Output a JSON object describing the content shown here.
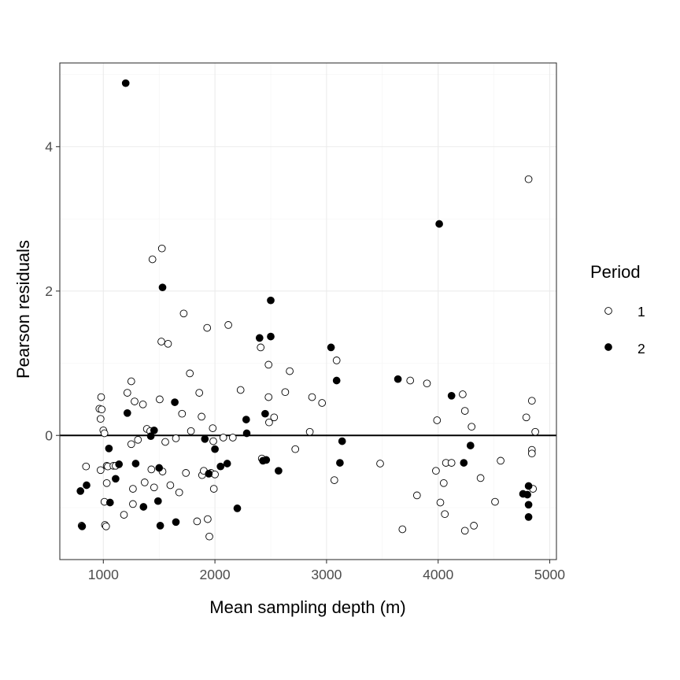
{
  "chart_data": {
    "type": "scatter",
    "xlabel": "Mean sampling depth (m)",
    "ylabel": "Pearson residuals",
    "xlim": [
      610,
      5060
    ],
    "ylim": [
      -1.72,
      5.16
    ],
    "x_ticks": [
      1000,
      2000,
      3000,
      4000,
      5000
    ],
    "x_tick_labels": [
      "1000",
      "2000",
      "3000",
      "4000",
      "5000"
    ],
    "y_ticks": [
      0,
      2,
      4
    ],
    "y_tick_labels": [
      "0",
      "2",
      "4"
    ],
    "x_minor": [
      1500,
      2500,
      3500,
      4500
    ],
    "y_minor": [
      -1,
      1,
      3,
      5
    ],
    "grid": true,
    "hline": 0,
    "legend": {
      "title": "Period",
      "position": "right",
      "entries": [
        {
          "label": "1",
          "style": "open"
        },
        {
          "label": "2",
          "style": "filled"
        }
      ]
    },
    "series": [
      {
        "name": "1",
        "style": "open",
        "points": [
          [
            805,
            -1.25
          ],
          [
            845,
            -0.43
          ],
          [
            965,
            0.37
          ],
          [
            980,
            0.53
          ],
          [
            975,
            0.23
          ],
          [
            985,
            0.36
          ],
          [
            975,
            -0.48
          ],
          [
            1000,
            0.07
          ],
          [
            1010,
            0.03
          ],
          [
            1010,
            -0.92
          ],
          [
            1015,
            -1.24
          ],
          [
            1025,
            -1.26
          ],
          [
            1030,
            -0.42
          ],
          [
            1030,
            -0.66
          ],
          [
            1040,
            -0.43
          ],
          [
            1090,
            -0.42
          ],
          [
            1110,
            -0.42
          ],
          [
            1185,
            -1.1
          ],
          [
            1215,
            0.59
          ],
          [
            1250,
            0.75
          ],
          [
            1250,
            -0.12
          ],
          [
            1265,
            -0.74
          ],
          [
            1265,
            -0.95
          ],
          [
            1280,
            0.47
          ],
          [
            1310,
            -0.06
          ],
          [
            1355,
            0.43
          ],
          [
            1370,
            -0.65
          ],
          [
            1390,
            0.09
          ],
          [
            1420,
            0.06
          ],
          [
            1430,
            -0.47
          ],
          [
            1440,
            2.44
          ],
          [
            1455,
            -0.72
          ],
          [
            1505,
            0.5
          ],
          [
            1520,
            1.3
          ],
          [
            1525,
            2.59
          ],
          [
            1530,
            -0.5
          ],
          [
            1555,
            -0.09
          ],
          [
            1580,
            1.27
          ],
          [
            1600,
            -0.69
          ],
          [
            1650,
            -0.04
          ],
          [
            1680,
            -0.79
          ],
          [
            1705,
            0.3
          ],
          [
            1720,
            1.69
          ],
          [
            1740,
            -0.52
          ],
          [
            1775,
            0.86
          ],
          [
            1785,
            0.06
          ],
          [
            1840,
            -1.19
          ],
          [
            1860,
            0.59
          ],
          [
            1880,
            0.26
          ],
          [
            1885,
            -0.55
          ],
          [
            1900,
            -0.49
          ],
          [
            1935,
            -1.16
          ],
          [
            1930,
            1.49
          ],
          [
            1950,
            -1.4
          ],
          [
            1965,
            -0.52
          ],
          [
            1980,
            0.1
          ],
          [
            1985,
            -0.08
          ],
          [
            1990,
            -0.74
          ],
          [
            2000,
            -0.54
          ],
          [
            2075,
            -0.03
          ],
          [
            2120,
            1.53
          ],
          [
            2160,
            -0.03
          ],
          [
            2230,
            0.63
          ],
          [
            2410,
            1.22
          ],
          [
            2420,
            -0.32
          ],
          [
            2480,
            0.98
          ],
          [
            2480,
            0.53
          ],
          [
            2485,
            0.18
          ],
          [
            2530,
            0.25
          ],
          [
            2630,
            0.6
          ],
          [
            2670,
            0.89
          ],
          [
            2720,
            -0.19
          ],
          [
            2850,
            0.05
          ],
          [
            2870,
            0.53
          ],
          [
            2960,
            0.45
          ],
          [
            3070,
            -0.62
          ],
          [
            3090,
            1.04
          ],
          [
            3480,
            -0.39
          ],
          [
            3680,
            -1.3
          ],
          [
            3750,
            0.76
          ],
          [
            3810,
            -0.83
          ],
          [
            3900,
            0.72
          ],
          [
            3980,
            -0.49
          ],
          [
            3990,
            0.21
          ],
          [
            4020,
            -0.93
          ],
          [
            4050,
            -0.66
          ],
          [
            4060,
            -1.09
          ],
          [
            4070,
            -0.38
          ],
          [
            4120,
            -0.38
          ],
          [
            4220,
            0.57
          ],
          [
            4240,
            0.34
          ],
          [
            4240,
            -1.32
          ],
          [
            4300,
            0.12
          ],
          [
            4320,
            -1.25
          ],
          [
            4380,
            -0.59
          ],
          [
            4510,
            -0.92
          ],
          [
            4560,
            -0.35
          ],
          [
            4790,
            0.25
          ],
          [
            4810,
            3.55
          ],
          [
            4840,
            -0.2
          ],
          [
            4840,
            -0.25
          ],
          [
            4840,
            0.48
          ],
          [
            4850,
            -0.74
          ],
          [
            4870,
            0.05
          ]
        ]
      },
      {
        "name": "2",
        "style": "filled",
        "points": [
          [
            795,
            -0.77
          ],
          [
            810,
            -1.26
          ],
          [
            850,
            -0.69
          ],
          [
            1050,
            -0.18
          ],
          [
            1060,
            -0.93
          ],
          [
            1110,
            -0.6
          ],
          [
            1140,
            -0.4
          ],
          [
            1200,
            4.88
          ],
          [
            1215,
            0.31
          ],
          [
            1290,
            -0.39
          ],
          [
            1360,
            -0.99
          ],
          [
            1425,
            -0.01
          ],
          [
            1455,
            0.07
          ],
          [
            1490,
            -0.91
          ],
          [
            1500,
            -0.45
          ],
          [
            1510,
            -1.25
          ],
          [
            1530,
            2.05
          ],
          [
            1640,
            0.46
          ],
          [
            1650,
            -1.2
          ],
          [
            1910,
            -0.05
          ],
          [
            1945,
            -0.53
          ],
          [
            2000,
            -0.19
          ],
          [
            2050,
            -0.43
          ],
          [
            2110,
            -0.39
          ],
          [
            2200,
            -1.01
          ],
          [
            2280,
            0.22
          ],
          [
            2285,
            0.03
          ],
          [
            2400,
            1.35
          ],
          [
            2430,
            -0.35
          ],
          [
            2460,
            -0.34
          ],
          [
            2450,
            0.3
          ],
          [
            2500,
            1.37
          ],
          [
            2500,
            1.87
          ],
          [
            2570,
            -0.49
          ],
          [
            3040,
            1.22
          ],
          [
            3090,
            0.76
          ],
          [
            3120,
            -0.38
          ],
          [
            3140,
            -0.08
          ],
          [
            3640,
            0.78
          ],
          [
            4010,
            2.93
          ],
          [
            4120,
            0.55
          ],
          [
            4230,
            -0.38
          ],
          [
            4290,
            -0.14
          ],
          [
            4760,
            -0.81
          ],
          [
            4800,
            -0.82
          ],
          [
            4810,
            -0.7
          ],
          [
            4810,
            -0.96
          ],
          [
            4810,
            -1.13
          ]
        ]
      }
    ]
  }
}
